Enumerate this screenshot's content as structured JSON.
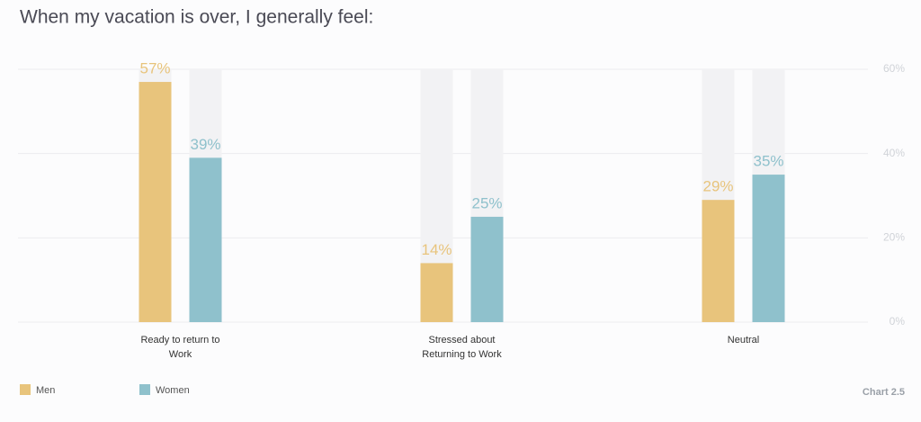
{
  "chart_data": {
    "type": "bar",
    "title": "When my vacation is over, I generally feel:",
    "categories": [
      "Ready to return to Work",
      "Stressed about Returning to Work",
      "Neutral"
    ],
    "series": [
      {
        "name": "Men",
        "color": "#e8c47c",
        "values": [
          57,
          14,
          29
        ],
        "value_labels": [
          "57%",
          "14%",
          "29%"
        ]
      },
      {
        "name": "Women",
        "color": "#8fc1cc",
        "values": [
          39,
          25,
          35
        ],
        "value_labels": [
          "39%",
          "25%",
          "35%"
        ]
      }
    ],
    "ylim": [
      0,
      60
    ],
    "yticks": [
      {
        "value": 0,
        "label": "0%"
      },
      {
        "value": 20,
        "label": "20%"
      },
      {
        "value": 40,
        "label": "40%"
      },
      {
        "value": 60,
        "label": "60%"
      }
    ],
    "grid": true,
    "legend": "bottom-left",
    "footnote": "Chart 2.5"
  }
}
